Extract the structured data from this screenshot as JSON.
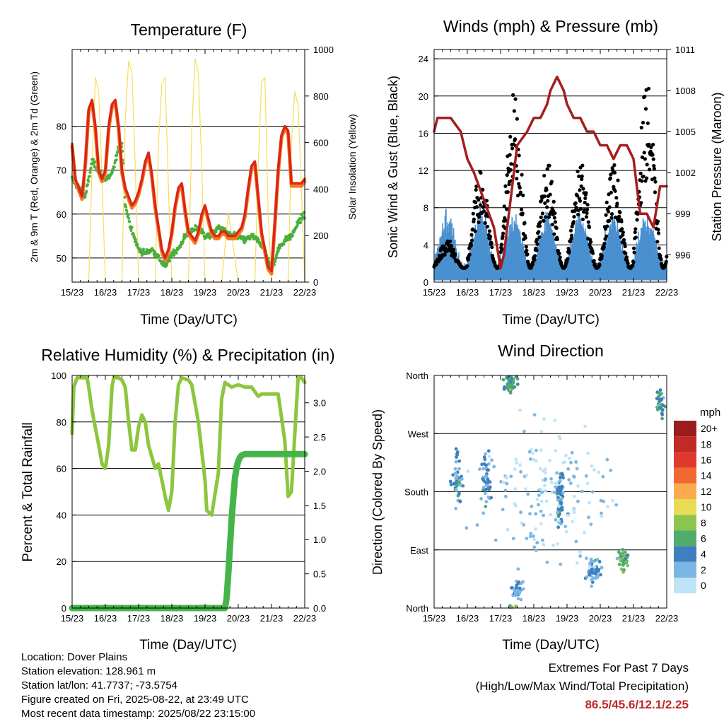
{
  "x_ticks": [
    "15/23",
    "16/23",
    "17/23",
    "18/23",
    "19/23",
    "20/23",
    "21/23",
    "22/23"
  ],
  "info": {
    "location": "Location: Dover Plains",
    "elevation": "Station elevation: 128.961 m",
    "latlon": "Station lat/lon: 41.7737; -73.5754",
    "created": "Figure created on Fri, 2025-08-22, at 23:49 UTC",
    "recent": "Most recent data timestamp: 2025/08/22 23:15:00"
  },
  "extremes": {
    "title": "Extremes For Past 7 Days",
    "subtitle": "(High/Low/Max Wind/Total Precipitation)",
    "values": "86.5/45.6/12.1/2.25",
    "color": "#c0272d"
  },
  "chart_data": [
    {
      "type": "line",
      "title": "Temperature (F)",
      "xlabel": "Time (Day/UTC)",
      "ylabel": "2m & 9m T (Red, Orange) & 2m Td (Green)",
      "ylabel_right": "Solar Insolation (Yellow)",
      "xlim": [
        0,
        7
      ],
      "ylim": [
        44.5,
        97.5
      ],
      "yticks": [
        50,
        60,
        70,
        80
      ],
      "ylim_right": [
        0,
        1000
      ],
      "yticks_right": [
        0,
        200,
        400,
        600,
        800,
        1000
      ],
      "colors": {
        "t2m": "#dd2418",
        "t9m": "#f07d21",
        "td": "#4bae3c",
        "solar": "#f7dd5a"
      },
      "series": [
        {
          "axis": "left",
          "key": "t2m",
          "x": [
            0,
            0.1,
            0.2,
            0.3,
            0.4,
            0.5,
            0.6,
            0.7,
            0.8,
            0.9,
            1.0,
            1.1,
            1.2,
            1.3,
            1.4,
            1.5,
            1.6,
            1.7,
            1.8,
            1.9,
            2.0,
            2.1,
            2.2,
            2.3,
            2.4,
            2.5,
            2.6,
            2.7,
            2.8,
            2.9,
            3.0,
            3.1,
            3.2,
            3.3,
            3.4,
            3.5,
            3.6,
            3.7,
            3.8,
            3.9,
            4.0,
            4.1,
            4.2,
            4.3,
            4.4,
            4.5,
            4.6,
            4.7,
            4.8,
            4.9,
            5.0,
            5.1,
            5.2,
            5.3,
            5.4,
            5.5,
            5.6,
            5.7,
            5.8,
            5.9,
            6.0,
            6.1,
            6.2,
            6.3,
            6.4,
            6.5,
            6.6,
            6.7,
            6.8,
            6.9,
            7.0
          ],
          "y": [
            76,
            68,
            66,
            64,
            72,
            84,
            86,
            80,
            70,
            68,
            70,
            80,
            85,
            86,
            80,
            70,
            66,
            64,
            62,
            63,
            65,
            68,
            72,
            74,
            69,
            62,
            57,
            52,
            50,
            52,
            56,
            62,
            66,
            67,
            61,
            56,
            55,
            54,
            56,
            60,
            62,
            59,
            56,
            55,
            55,
            56,
            56,
            55,
            55,
            55,
            56,
            57,
            60,
            66,
            71,
            72,
            64,
            56,
            52,
            48,
            47,
            58,
            70,
            78,
            80,
            79,
            67,
            67,
            67,
            67,
            68
          ]
        },
        {
          "axis": "left",
          "key": "td",
          "x": [
            0,
            0.2,
            0.4,
            0.6,
            0.8,
            1.0,
            1.2,
            1.4,
            1.5,
            1.6,
            1.8,
            2.0,
            2.2,
            2.4,
            2.6,
            2.8,
            3.0,
            3.2,
            3.4,
            3.6,
            3.8,
            4.0,
            4.2,
            4.4,
            4.6,
            4.8,
            5.0,
            5.2,
            5.4,
            5.6,
            5.8,
            6.0,
            6.2,
            6.4,
            6.6,
            6.8,
            7.0
          ],
          "y": [
            68,
            66,
            64,
            72,
            70,
            68,
            69,
            75,
            76,
            62,
            56,
            52,
            51,
            52,
            50,
            48,
            51,
            52,
            55,
            56,
            57,
            55,
            55,
            57,
            56,
            55,
            55,
            54,
            55,
            54,
            52,
            47,
            52,
            54,
            55,
            58,
            60
          ]
        },
        {
          "axis": "right",
          "key": "solar",
          "x": [
            0,
            0.5,
            0.6,
            0.7,
            0.8,
            0.9,
            1.0,
            1.5,
            1.6,
            1.7,
            1.8,
            1.9,
            2.0,
            2.5,
            2.6,
            2.7,
            2.8,
            2.9,
            3.0,
            3.5,
            3.6,
            3.7,
            3.8,
            3.9,
            4.0,
            4.5,
            4.6,
            4.7,
            4.8,
            4.9,
            5.0,
            5.5,
            5.6,
            5.7,
            5.8,
            5.9,
            6.0,
            6.5,
            6.6,
            6.7,
            6.8,
            6.9,
            7.0
          ],
          "y": [
            0,
            0,
            500,
            880,
            820,
            450,
            0,
            0,
            700,
            950,
            900,
            500,
            0,
            0,
            600,
            850,
            880,
            400,
            0,
            0,
            650,
            960,
            900,
            500,
            0,
            0,
            150,
            300,
            200,
            100,
            0,
            0,
            500,
            860,
            880,
            300,
            0,
            0,
            600,
            820,
            760,
            400,
            0
          ]
        }
      ]
    },
    {
      "type": "scatter",
      "title": "Winds (mph) & Pressure (mb)",
      "xlabel": "Time (Day/UTC)",
      "ylabel": "Sonic Wind & Gust (Blue, Black)",
      "ylabel_right": "Station Pressure (Maroon)",
      "xlim": [
        0,
        7
      ],
      "ylim": [
        0,
        25
      ],
      "yticks": [
        0,
        4,
        8,
        12,
        16,
        20,
        24
      ],
      "ylim_right": [
        994,
        1011
      ],
      "yticks_right": [
        996,
        999,
        1002,
        1005,
        1008,
        1011
      ],
      "colors": {
        "wind": "#4a90d0",
        "gust": "#000000",
        "pressure": "#a41e1e"
      },
      "daily_max_gust": [
        5,
        12,
        20,
        13,
        13,
        13,
        21,
        12
      ],
      "series": [
        {
          "axis": "right",
          "key": "pressure",
          "x": [
            0,
            0.1,
            0.3,
            0.5,
            0.8,
            1.0,
            1.2,
            1.5,
            1.8,
            2.0,
            2.1,
            2.3,
            2.5,
            2.8,
            3.0,
            3.2,
            3.4,
            3.5,
            3.7,
            3.9,
            4.0,
            4.2,
            4.4,
            4.6,
            4.8,
            5.0,
            5.2,
            5.4,
            5.6,
            5.8,
            6.0,
            6.1,
            6.2,
            6.4,
            6.6,
            6.8,
            6.9,
            7.0
          ],
          "y": [
            1005,
            1006,
            1006,
            1006,
            1005,
            1003,
            1002,
            1000,
            998,
            995,
            996,
            1000,
            1004,
            1005,
            1006,
            1006,
            1007,
            1008,
            1009,
            1008,
            1007,
            1006,
            1006,
            1005,
            1005,
            1004,
            1004,
            1003,
            1004,
            1004,
            1003,
            1001,
            999,
            999,
            998,
            1001,
            1001,
            1001
          ]
        }
      ]
    },
    {
      "type": "line",
      "title": "Relative Humidity (%) & Precipitation (in)",
      "xlabel": "Time (Day/UTC)",
      "ylabel": "Percent & Total Rainfall",
      "xlim": [
        0,
        7
      ],
      "ylim": [
        0,
        100
      ],
      "yticks": [
        0,
        20,
        40,
        60,
        80,
        100
      ],
      "ylim_right": [
        0,
        3.4
      ],
      "yticks_right": [
        0,
        0.5,
        1.0,
        1.5,
        2.0,
        2.5,
        3.0
      ],
      "yticklabels_right": [
        "0.0",
        "0.5",
        "1.0",
        "1.5",
        "2.0",
        "2.5",
        "3.0"
      ],
      "colors": {
        "rh": "#8cc63f",
        "precip": "#45b54a"
      },
      "series": [
        {
          "axis": "left",
          "key": "rh",
          "x": [
            0,
            0.05,
            0.15,
            0.3,
            0.45,
            0.5,
            0.6,
            0.8,
            0.9,
            1.0,
            1.1,
            1.2,
            1.25,
            1.4,
            1.5,
            1.6,
            1.7,
            1.8,
            1.9,
            2.0,
            2.1,
            2.2,
            2.3,
            2.5,
            2.6,
            2.7,
            2.8,
            2.9,
            3.0,
            3.1,
            3.2,
            3.3,
            3.5,
            3.6,
            3.8,
            4.0,
            4.05,
            4.2,
            4.4,
            4.5,
            4.6,
            4.8,
            5.0,
            5.2,
            5.4,
            5.6,
            5.7,
            6.0,
            6.2,
            6.4,
            6.5,
            6.6,
            6.8,
            6.9,
            7.0
          ],
          "y": [
            75,
            95,
            99,
            99,
            99,
            95,
            85,
            70,
            62,
            60,
            70,
            95,
            99,
            99,
            98,
            95,
            80,
            68,
            68,
            78,
            83,
            80,
            70,
            60,
            62,
            55,
            48,
            42,
            50,
            80,
            96,
            99,
            98,
            96,
            80,
            55,
            42,
            40,
            58,
            90,
            97,
            95,
            96,
            95,
            95,
            91,
            92,
            92,
            92,
            72,
            48,
            50,
            99,
            99,
            97
          ]
        },
        {
          "axis": "right",
          "key": "precip",
          "x": [
            0,
            1.0,
            2.0,
            3.0,
            4.0,
            4.6,
            4.65,
            4.7,
            4.75,
            4.8,
            4.85,
            4.9,
            4.95,
            5.0,
            5.05,
            5.1,
            5.2,
            6.0,
            7.0
          ],
          "y": [
            0,
            0,
            0,
            0,
            0,
            0,
            0.15,
            0.5,
            0.9,
            1.3,
            1.6,
            1.9,
            2.05,
            2.15,
            2.2,
            2.23,
            2.25,
            2.25,
            2.25
          ]
        }
      ]
    },
    {
      "type": "scatter",
      "title": "Wind Direction",
      "xlabel": "Time (Day/UTC)",
      "ylabel": "Direction (Colored By Speed)",
      "xlim": [
        0,
        7
      ],
      "ylim": [
        0,
        360
      ],
      "ytick_values": [
        0,
        90,
        180,
        270,
        360
      ],
      "ytick_labels": [
        "North",
        "East",
        "South",
        "West",
        "North"
      ],
      "colorbar": {
        "title": "mph",
        "labels": [
          "20+",
          "18",
          "16",
          "14",
          "12",
          "10",
          "8",
          "6",
          "4",
          "2",
          "0"
        ],
        "colors": [
          "#9b1c1c",
          "#c22a27",
          "#e03a2e",
          "#f06a2f",
          "#fbab4d",
          "#e8dc55",
          "#8dc44f",
          "#4fac6a",
          "#3f7fbf",
          "#7cb6e4",
          "#bfe3f6"
        ]
      },
      "clusters": [
        {
          "x": 0.7,
          "dir": 200,
          "spread": [
            0.25,
            70
          ],
          "speed": 3,
          "n": 45
        },
        {
          "x": 1.6,
          "dir": 200,
          "spread": [
            0.25,
            70
          ],
          "speed": 3,
          "n": 45
        },
        {
          "x": 2.3,
          "dir": 350,
          "spread": [
            0.3,
            25
          ],
          "speed": 5,
          "n": 55
        },
        {
          "x": 2.5,
          "dir": 30,
          "spread": [
            0.3,
            30
          ],
          "speed": 3,
          "n": 30
        },
        {
          "x": 3.8,
          "dir": 170,
          "spread": [
            0.2,
            70
          ],
          "speed": 4,
          "n": 60
        },
        {
          "x": 4.8,
          "dir": 60,
          "spread": [
            0.35,
            30
          ],
          "speed": 3,
          "n": 60
        },
        {
          "x": 5.7,
          "dir": 75,
          "spread": [
            0.25,
            25
          ],
          "speed": 6,
          "n": 40
        },
        {
          "x": 6.8,
          "dir": 320,
          "spread": [
            0.2,
            40
          ],
          "speed": 5,
          "n": 35
        },
        {
          "x": 3.5,
          "dir": 180,
          "spread": [
            3.2,
            170
          ],
          "speed": 1,
          "n": 160
        }
      ]
    }
  ]
}
